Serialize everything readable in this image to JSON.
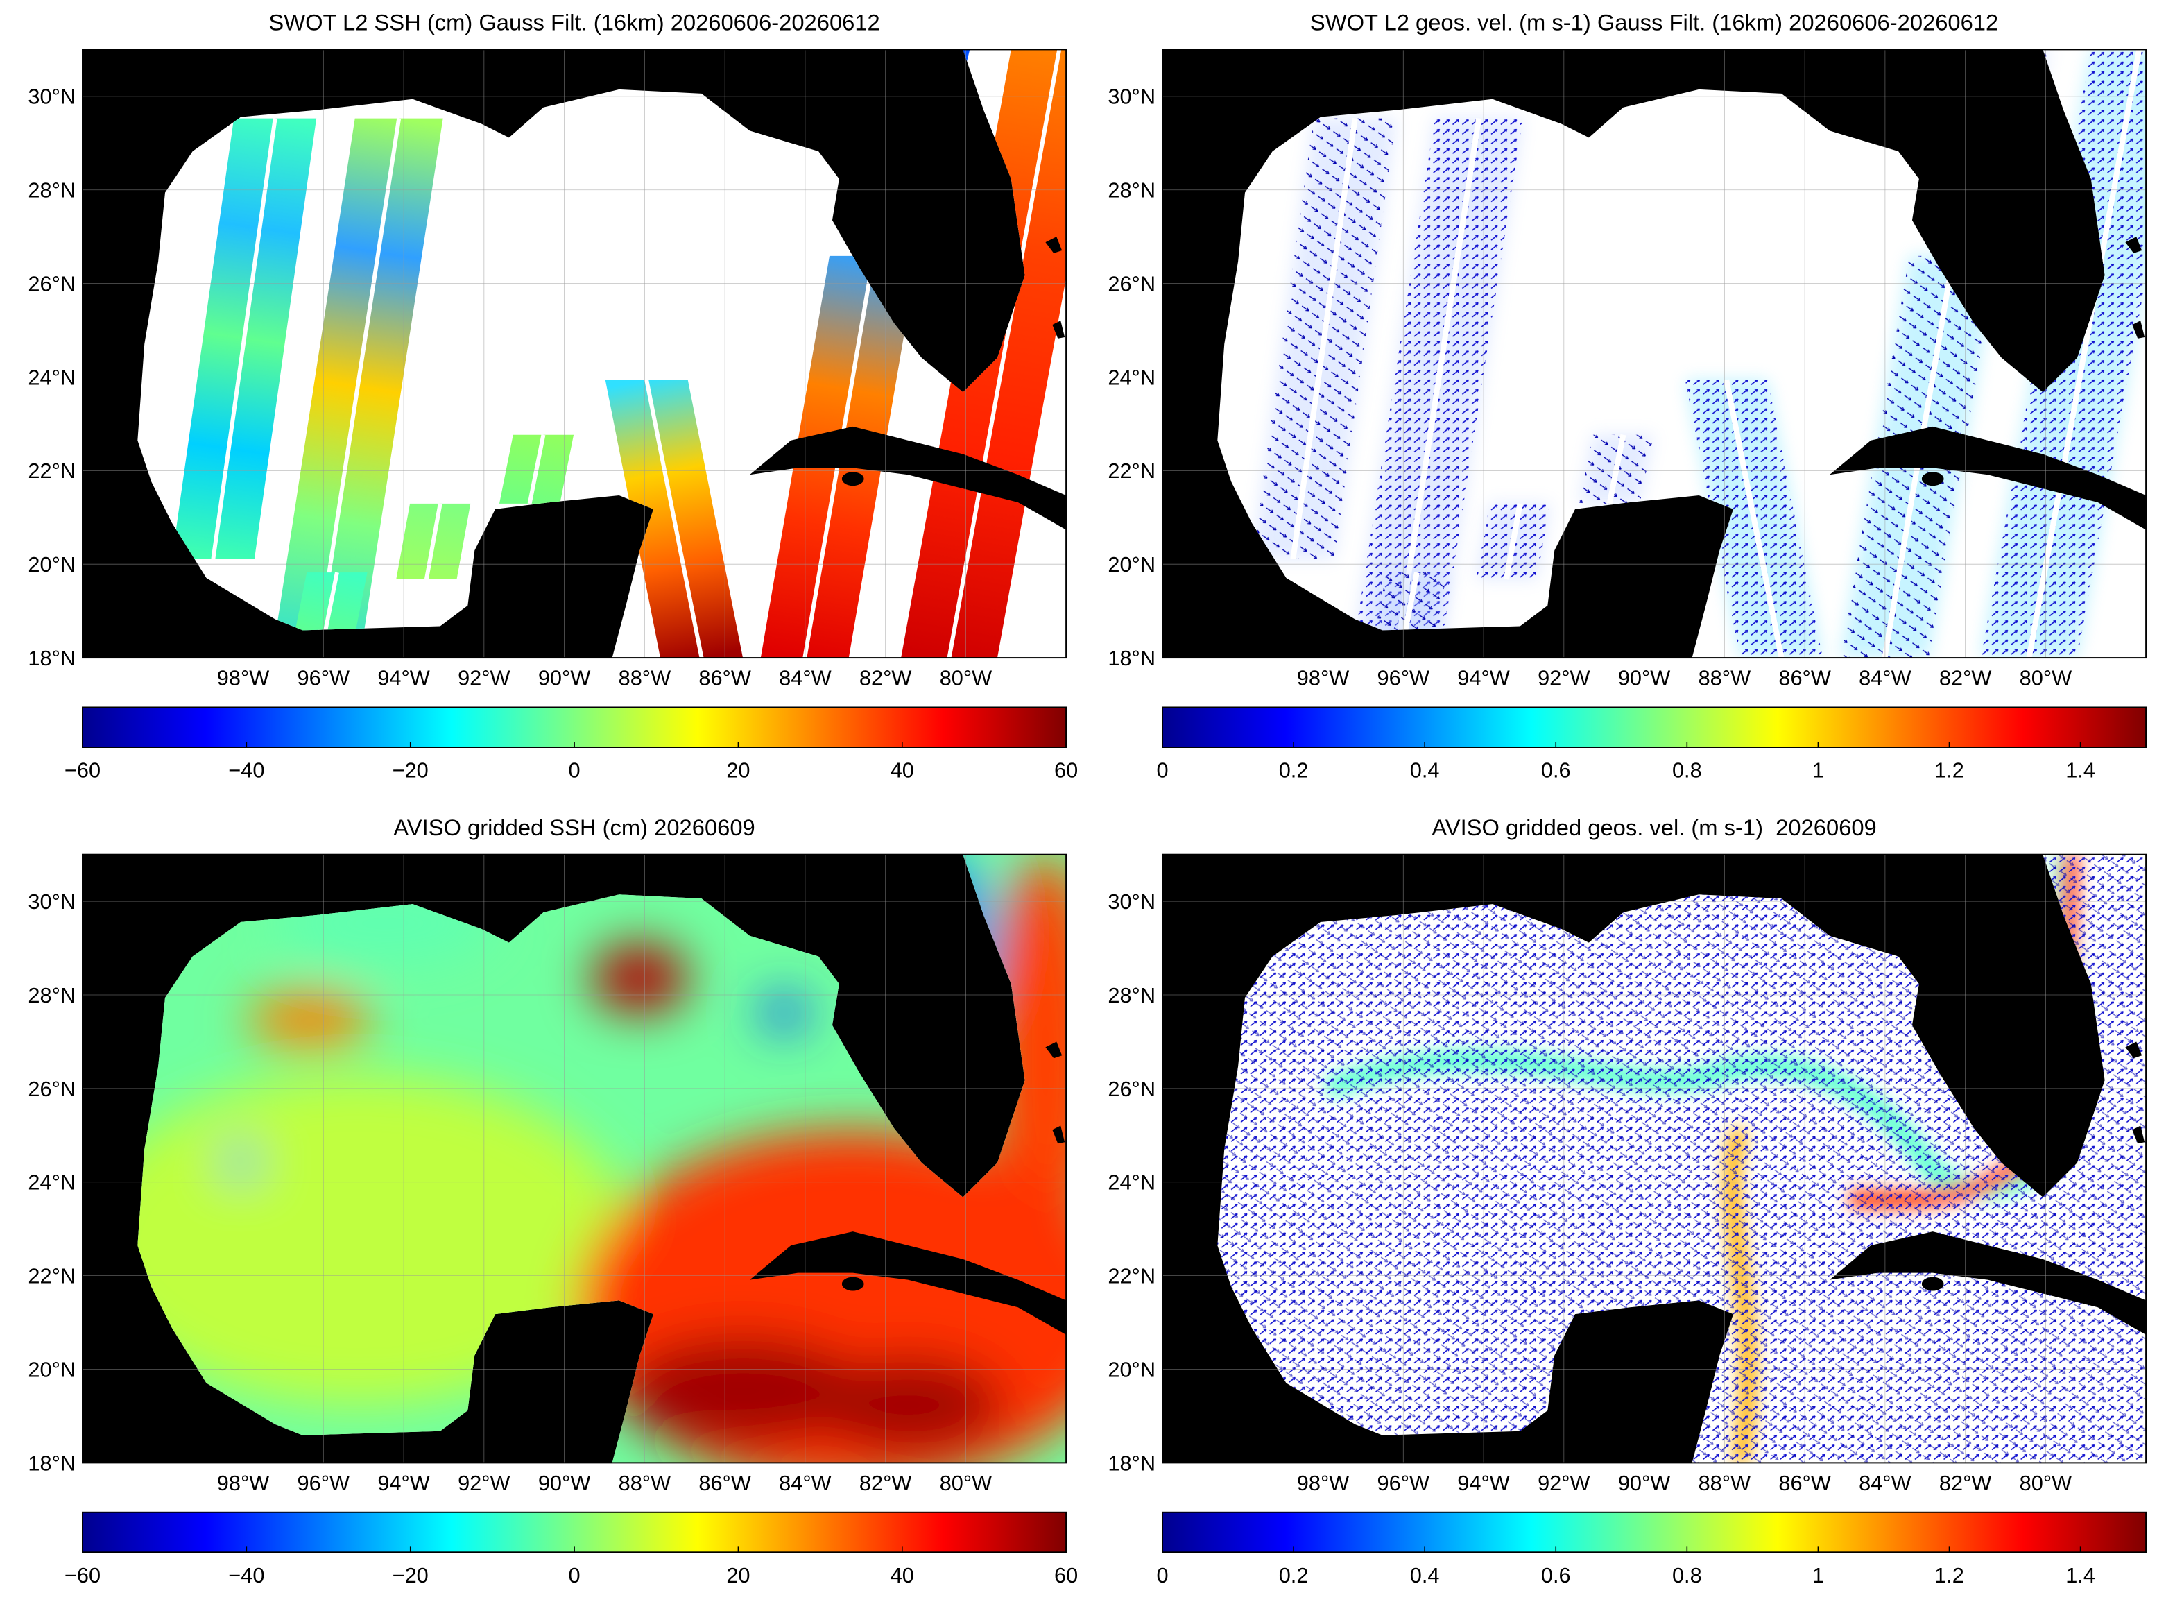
{
  "panels": [
    {
      "title": "SWOT L2 SSH (cm) Gauss Filt. (16km) 20260606-20260612",
      "map": {
        "xlim": [
          -102,
          -77.5
        ],
        "ylim": [
          18,
          31
        ],
        "xticks": [
          {
            "value": -98,
            "label": "98°W"
          },
          {
            "value": -96,
            "label": "96°W"
          },
          {
            "value": -94,
            "label": "94°W"
          },
          {
            "value": -92,
            "label": "92°W"
          },
          {
            "value": -90,
            "label": "90°W"
          },
          {
            "value": -88,
            "label": "88°W"
          },
          {
            "value": -86,
            "label": "86°W"
          },
          {
            "value": -84,
            "label": "84°W"
          },
          {
            "value": -82,
            "label": "82°W"
          },
          {
            "value": -80,
            "label": "80°W"
          }
        ],
        "yticks": [
          {
            "value": 18,
            "label": "18°N"
          },
          {
            "value": 20,
            "label": "20°N"
          },
          {
            "value": 22,
            "label": "22°N"
          },
          {
            "value": 24,
            "label": "24°N"
          },
          {
            "value": 26,
            "label": "26°N"
          },
          {
            "value": 28,
            "label": "28°N"
          },
          {
            "value": 30,
            "label": "30°N"
          }
        ]
      },
      "colorbar": {
        "lim": [
          -60,
          60
        ],
        "ticks": [
          {
            "value": -60,
            "label": "−60"
          },
          {
            "value": -40,
            "label": "−40"
          },
          {
            "value": -20,
            "label": "−20"
          },
          0,
          20,
          40,
          60
        ]
      }
    },
    {
      "title": "SWOT L2 geos. vel. (m s-1) Gauss Filt. (16km) 20260606-20260612",
      "map": {
        "xlim": [
          -102,
          -77.5
        ],
        "ylim": [
          18,
          31
        ],
        "xticks": [
          {
            "value": -98,
            "label": "98°W"
          },
          {
            "value": -96,
            "label": "96°W"
          },
          {
            "value": -94,
            "label": "94°W"
          },
          {
            "value": -92,
            "label": "92°W"
          },
          {
            "value": -90,
            "label": "90°W"
          },
          {
            "value": -88,
            "label": "88°W"
          },
          {
            "value": -86,
            "label": "86°W"
          },
          {
            "value": -84,
            "label": "84°W"
          },
          {
            "value": -82,
            "label": "82°W"
          },
          {
            "value": -80,
            "label": "80°W"
          }
        ],
        "yticks": [
          {
            "value": 18,
            "label": "18°N"
          },
          {
            "value": 20,
            "label": "20°N"
          },
          {
            "value": 22,
            "label": "22°N"
          },
          {
            "value": 24,
            "label": "24°N"
          },
          {
            "value": 26,
            "label": "26°N"
          },
          {
            "value": 28,
            "label": "28°N"
          },
          {
            "value": 30,
            "label": "30°N"
          }
        ]
      },
      "colorbar": {
        "lim": [
          0,
          1.5
        ],
        "ticks": [
          0,
          0.2,
          0.4,
          0.6,
          0.8,
          1,
          1.2,
          1.4
        ]
      }
    },
    {
      "title": "AVISO gridded SSH (cm) 20260609",
      "map": {
        "xlim": [
          -102,
          -77.5
        ],
        "ylim": [
          18,
          31
        ],
        "xticks": [
          {
            "value": -98,
            "label": "98°W"
          },
          {
            "value": -96,
            "label": "96°W"
          },
          {
            "value": -94,
            "label": "94°W"
          },
          {
            "value": -92,
            "label": "92°W"
          },
          {
            "value": -90,
            "label": "90°W"
          },
          {
            "value": -88,
            "label": "88°W"
          },
          {
            "value": -86,
            "label": "86°W"
          },
          {
            "value": -84,
            "label": "84°W"
          },
          {
            "value": -82,
            "label": "82°W"
          },
          {
            "value": -80,
            "label": "80°W"
          }
        ],
        "yticks": [
          {
            "value": 18,
            "label": "18°N"
          },
          {
            "value": 20,
            "label": "20°N"
          },
          {
            "value": 22,
            "label": "22°N"
          },
          {
            "value": 24,
            "label": "24°N"
          },
          {
            "value": 26,
            "label": "26°N"
          },
          {
            "value": 28,
            "label": "28°N"
          },
          {
            "value": 30,
            "label": "30°N"
          }
        ]
      },
      "colorbar": {
        "lim": [
          -60,
          60
        ],
        "ticks": [
          {
            "value": -60,
            "label": "−60"
          },
          {
            "value": -40,
            "label": "−40"
          },
          {
            "value": -20,
            "label": "−20"
          },
          0,
          20,
          40,
          60
        ]
      }
    },
    {
      "title": "AVISO gridded geos. vel. (m s-1)  20260609",
      "map": {
        "xlim": [
          -102,
          -77.5
        ],
        "ylim": [
          18,
          31
        ],
        "xticks": [
          {
            "value": -98,
            "label": "98°W"
          },
          {
            "value": -96,
            "label": "96°W"
          },
          {
            "value": -94,
            "label": "94°W"
          },
          {
            "value": -92,
            "label": "92°W"
          },
          {
            "value": -90,
            "label": "90°W"
          },
          {
            "value": -88,
            "label": "88°W"
          },
          {
            "value": -86,
            "label": "86°W"
          },
          {
            "value": -84,
            "label": "84°W"
          },
          {
            "value": -82,
            "label": "82°W"
          },
          {
            "value": -80,
            "label": "80°W"
          }
        ],
        "yticks": [
          {
            "value": 18,
            "label": "18°N"
          },
          {
            "value": 20,
            "label": "20°N"
          },
          {
            "value": 22,
            "label": "22°N"
          },
          {
            "value": 24,
            "label": "24°N"
          },
          {
            "value": 26,
            "label": "26°N"
          },
          {
            "value": 28,
            "label": "28°N"
          },
          {
            "value": 30,
            "label": "30°N"
          }
        ]
      },
      "colorbar": {
        "lim": [
          0,
          1.5
        ],
        "ticks": [
          0,
          0.2,
          0.4,
          0.6,
          0.8,
          1,
          1.2,
          1.4
        ]
      }
    }
  ]
}
